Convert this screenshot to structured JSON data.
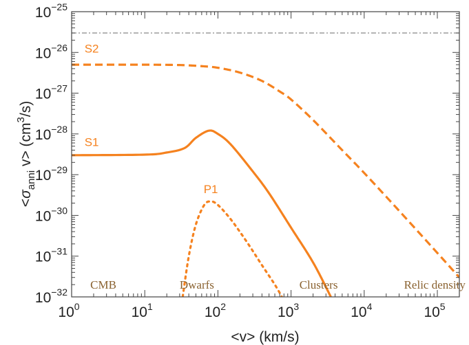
{
  "chart_data": {
    "type": "line",
    "x_scale": "log",
    "y_scale": "log",
    "xlim": [
      1,
      200000
    ],
    "ylim": [
      1e-32,
      1e-25
    ],
    "xlabel": "<v> (km/s)",
    "ylabel": "<σanni v> (cm3/s)",
    "x_ticks": [
      {
        "value": 1,
        "base": "10",
        "exp": "0"
      },
      {
        "value": 10,
        "base": "10",
        "exp": "1"
      },
      {
        "value": 100,
        "base": "10",
        "exp": "2"
      },
      {
        "value": 1000,
        "base": "10",
        "exp": "3"
      },
      {
        "value": 10000,
        "base": "10",
        "exp": "4"
      },
      {
        "value": 100000,
        "base": "10",
        "exp": "5"
      }
    ],
    "y_ticks": [
      {
        "value": 1e-32,
        "base": "10",
        "exp": "−32"
      },
      {
        "value": 1e-31,
        "base": "10",
        "exp": "−31"
      },
      {
        "value": 1e-30,
        "base": "10",
        "exp": "−30"
      },
      {
        "value": 1e-29,
        "base": "10",
        "exp": "−29"
      },
      {
        "value": 1e-28,
        "base": "10",
        "exp": "−28"
      },
      {
        "value": 1e-27,
        "base": "10",
        "exp": "−27"
      },
      {
        "value": 1e-26,
        "base": "10",
        "exp": "−26"
      },
      {
        "value": 1e-25,
        "base": "10",
        "exp": "−25"
      }
    ],
    "reference_line": {
      "y": 3e-26,
      "style": "dash-dot",
      "color": "#888888"
    },
    "series": [
      {
        "name": "S2",
        "style": "dashed",
        "color": "#f5821f",
        "points": [
          [
            1,
            5e-27
          ],
          [
            10,
            5e-27
          ],
          [
            30,
            4.9e-27
          ],
          [
            60,
            4.6e-27
          ],
          [
            100,
            4.2e-27
          ],
          [
            200,
            3.2e-27
          ],
          [
            400,
            2e-27
          ],
          [
            700,
            1.1e-27
          ],
          [
            1000,
            7e-28
          ],
          [
            2000,
            2.2e-28
          ],
          [
            5000,
            4e-29
          ],
          [
            10000,
            1.1e-29
          ],
          [
            30000,
            1.3e-30
          ],
          [
            100000,
            1.2e-31
          ],
          [
            200000,
            3e-32
          ]
        ]
      },
      {
        "name": "S1",
        "style": "solid",
        "color": "#f5821f",
        "points": [
          [
            1,
            3e-29
          ],
          [
            10,
            3.1e-29
          ],
          [
            20,
            3.5e-29
          ],
          [
            35,
            4.5e-29
          ],
          [
            50,
            8e-29
          ],
          [
            75,
            1.2e-28
          ],
          [
            100,
            1e-28
          ],
          [
            150,
            5.5e-29
          ],
          [
            300,
            1.2e-29
          ],
          [
            500,
            3.5e-30
          ],
          [
            1000,
            5e-31
          ],
          [
            2000,
            7e-32
          ],
          [
            3500,
            1e-32
          ]
        ]
      },
      {
        "name": "P1",
        "style": "dotted",
        "color": "#f5821f",
        "points": [
          [
            33,
            1e-32
          ],
          [
            40,
            1e-31
          ],
          [
            50,
            6e-31
          ],
          [
            65,
            1.8e-30
          ],
          [
            80,
            2.2e-30
          ],
          [
            100,
            1.8e-30
          ],
          [
            150,
            8e-31
          ],
          [
            250,
            2.2e-31
          ],
          [
            400,
            6e-32
          ],
          [
            600,
            2e-32
          ],
          [
            750,
            1e-32
          ]
        ]
      }
    ],
    "series_labels": [
      {
        "text": "S2",
        "x": 1.5,
        "y": 1e-26
      },
      {
        "text": "S1",
        "x": 1.5,
        "y": 5e-29
      },
      {
        "text": "P1",
        "x": 80,
        "y": 3.5e-30
      }
    ],
    "region_labels": [
      {
        "text": "CMB",
        "x": 1.8,
        "y": 1.6e-32
      },
      {
        "text": "Dwarfs",
        "x": 30,
        "y": 1.6e-32
      },
      {
        "text": "Clusters",
        "x": 1300,
        "y": 1.6e-32
      },
      {
        "text": "Relic density",
        "x": 35000,
        "y": 1.6e-32
      }
    ],
    "colors": {
      "orange": "#f5821f",
      "region_text": "#8a6230",
      "reference": "#888888",
      "frame": "#444444"
    }
  }
}
